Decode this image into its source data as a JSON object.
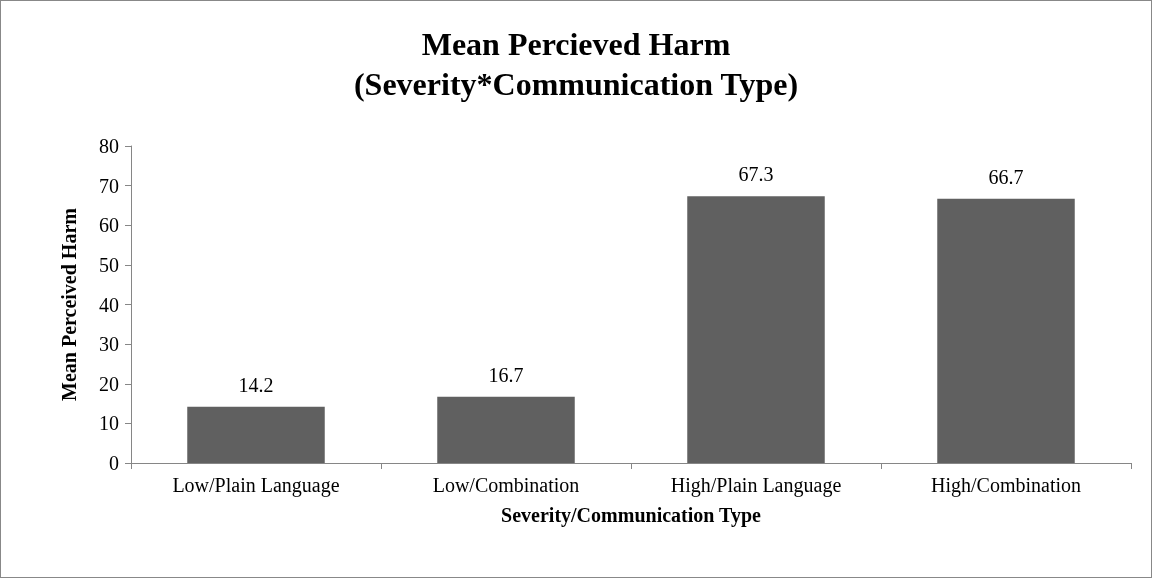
{
  "chart_data": {
    "type": "bar",
    "title": "Mean Percieved Harm\n(Severity*Communication Type)",
    "xlabel": "Severity/Communication Type",
    "ylabel": "Mean Perceived Harm",
    "categories": [
      "Low/Plain Language",
      "Low/Combination",
      "High/Plain Language",
      "High/Combination"
    ],
    "values": [
      14.2,
      16.7,
      67.3,
      66.7
    ],
    "color": "#606060",
    "ylim": [
      0,
      80
    ],
    "yticks": [
      0,
      10,
      20,
      30,
      40,
      50,
      60,
      70,
      80
    ],
    "grid": false,
    "data_labels": true
  }
}
